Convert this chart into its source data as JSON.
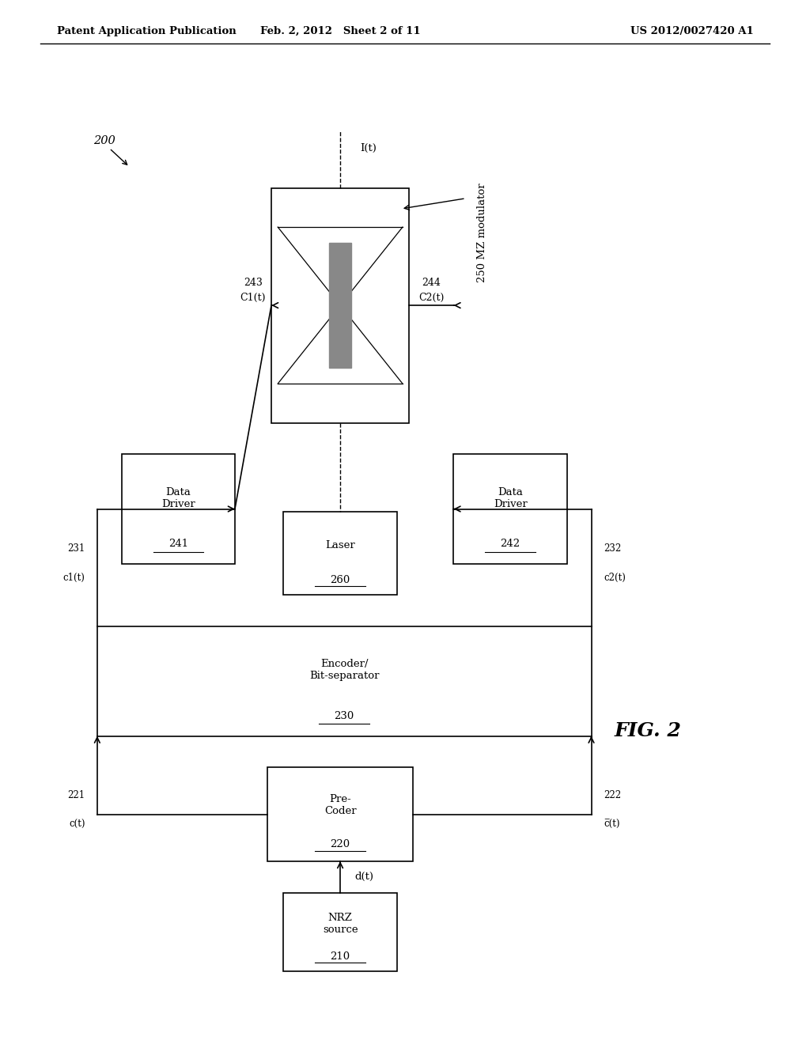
{
  "bg_color": "#ffffff",
  "line_color": "#000000",
  "header_left": "Patent Application Publication",
  "header_mid": "Feb. 2, 2012   Sheet 2 of 11",
  "header_right": "US 2012/0027420 A1",
  "fig_label": "FIG. 2",
  "system_label": "200",
  "mz_modulator_label": "250 MZ modulator",
  "nrz_label": "NRZ\nsource",
  "nrz_ref": "210",
  "pre_label": "Pre-\nCoder",
  "pre_ref": "220",
  "enc_label": "Encoder/\nBit-separator",
  "enc_ref": "230",
  "laser_label": "Laser",
  "laser_ref": "260",
  "dd1_label": "Data\nDriver",
  "dd1_ref": "241",
  "dd2_label": "Data\nDriver",
  "dd2_ref": "242",
  "ref_243": "243",
  "ref_244": "244",
  "signal_It": "I(t)",
  "signal_C1t": "C1(t)",
  "signal_C2t": "C2(t)",
  "signal_c1t": "c1(t)",
  "signal_c2t": "c2(t)",
  "signal_ct": "c(t)",
  "signal_ct_bar": "c̅(t)",
  "signal_dt": "d(t)",
  "ref_231": "231",
  "ref_232": "232",
  "ref_221": "221",
  "ref_222": "222"
}
